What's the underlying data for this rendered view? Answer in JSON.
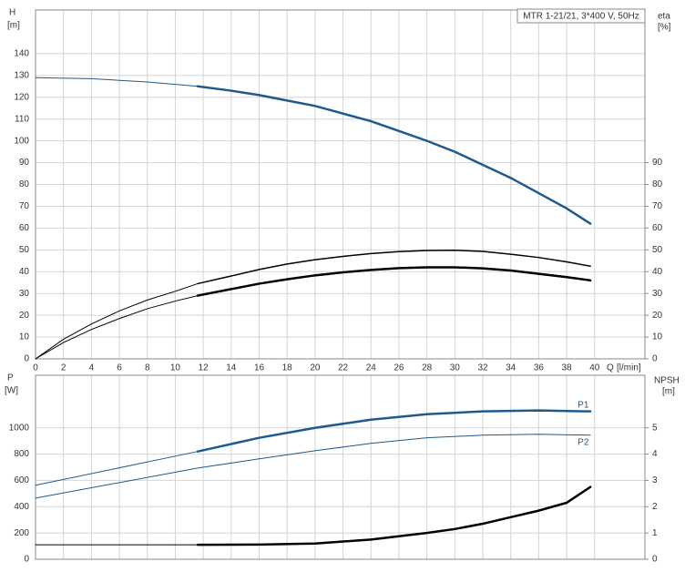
{
  "chart_data": [
    {
      "type": "line",
      "title": "MTR 1-21/21, 3*400 V, 50Hz",
      "y_label": "H",
      "y_unit": "[m]",
      "y2_label": "eta",
      "y2_unit": "[%]",
      "x_label": "Q",
      "x_unit": "[l/min]",
      "xlim": [
        0,
        43.6
      ],
      "xticks": [
        0,
        2,
        4,
        6,
        8,
        10,
        12,
        14,
        16,
        18,
        20,
        22,
        24,
        26,
        28,
        30,
        32,
        34,
        36,
        38,
        40
      ],
      "ylim": [
        0,
        160
      ],
      "yticks": [
        0,
        10,
        20,
        30,
        40,
        50,
        60,
        70,
        80,
        90,
        100,
        110,
        120,
        130,
        140
      ],
      "y2lim": [
        0,
        160
      ],
      "y2ticks": [
        0,
        10,
        20,
        30,
        40,
        50,
        60,
        70,
        80,
        90
      ],
      "grid": true,
      "series": [
        {
          "color": "#1f5a8c",
          "line_width": 1,
          "x": [
            0,
            4,
            8,
            11.6
          ],
          "values": [
            129,
            128.5,
            127,
            125
          ]
        },
        {
          "color": "#1f5a8c",
          "line_width": 2.5,
          "x": [
            11.6,
            14,
            16,
            18,
            20,
            22,
            24,
            26,
            28,
            30,
            32,
            34,
            36,
            38,
            39.7
          ],
          "values": [
            125,
            123,
            121,
            118.5,
            116,
            112.5,
            109,
            104.5,
            100,
            95,
            89,
            83,
            76,
            69,
            62
          ]
        },
        {
          "color": "#000000",
          "line_width": 1,
          "axis": "y2",
          "x": [
            0,
            2,
            4,
            6,
            8,
            10,
            11.6
          ],
          "values": [
            0,
            9,
            16,
            22,
            27,
            31,
            34.5
          ]
        },
        {
          "color": "#000000",
          "line_width": 1.5,
          "axis": "y2",
          "x": [
            11.6,
            14,
            16,
            18,
            20,
            22,
            24,
            26,
            28,
            30,
            32,
            34,
            36,
            38,
            39.7
          ],
          "values": [
            34.5,
            38,
            41,
            43.5,
            45.5,
            47,
            48.3,
            49.2,
            49.7,
            49.8,
            49.3,
            48,
            46.5,
            44.5,
            42.5
          ]
        },
        {
          "color": "#000000",
          "line_width": 1,
          "axis": "y2",
          "x": [
            0,
            2,
            4,
            6,
            8,
            10,
            11.6
          ],
          "values": [
            0,
            7.5,
            13.5,
            18.5,
            23,
            26.5,
            29
          ]
        },
        {
          "color": "#000000",
          "line_width": 2.5,
          "axis": "y2",
          "x": [
            11.6,
            14,
            16,
            18,
            20,
            22,
            24,
            26,
            28,
            30,
            32,
            34,
            36,
            38,
            39.7
          ],
          "values": [
            29,
            32,
            34.5,
            36.5,
            38.3,
            39.7,
            40.8,
            41.6,
            42,
            42,
            41.5,
            40.5,
            39,
            37.5,
            36
          ]
        }
      ]
    },
    {
      "type": "line",
      "y_label": "P",
      "y_unit": "[W]",
      "y2_label": "NPSH",
      "y2_unit": "[m]",
      "xlim": [
        0,
        43.6
      ],
      "ylim": [
        0,
        1400
      ],
      "yticks": [
        0,
        200,
        400,
        600,
        800,
        1000
      ],
      "y2lim": [
        0,
        7
      ],
      "y2ticks": [
        0,
        1,
        2,
        3,
        4,
        5
      ],
      "grid": true,
      "series": [
        {
          "color": "#1f5a8c",
          "line_width": 1,
          "x": [
            0,
            11.6
          ],
          "values": [
            563,
            820
          ]
        },
        {
          "name": "P1",
          "color": "#1f5a8c",
          "line_width": 2.5,
          "x": [
            11.6,
            16,
            20,
            24,
            28,
            32,
            36,
            39.7
          ],
          "values": [
            820,
            924,
            1000,
            1062,
            1104,
            1125,
            1132,
            1125
          ]
        },
        {
          "name": "P2",
          "color": "#1f5a8c",
          "line_width": 1,
          "x": [
            0,
            11.6,
            16,
            20,
            24,
            28,
            32,
            36,
            39.7
          ],
          "values": [
            465,
            694,
            764,
            826,
            882,
            924,
            944,
            951,
            944
          ]
        },
        {
          "color": "#000000",
          "line_width": 1,
          "axis": "y2",
          "x": [
            0,
            11.6
          ],
          "values": [
            0.55,
            0.55
          ]
        },
        {
          "color": "#000000",
          "line_width": 2.5,
          "axis": "y2",
          "x": [
            11.6,
            16,
            20,
            24,
            28,
            30,
            32,
            34,
            36,
            38,
            39.7
          ],
          "values": [
            0.55,
            0.56,
            0.6,
            0.75,
            1.0,
            1.15,
            1.35,
            1.6,
            1.85,
            2.15,
            2.75
          ]
        }
      ]
    }
  ]
}
